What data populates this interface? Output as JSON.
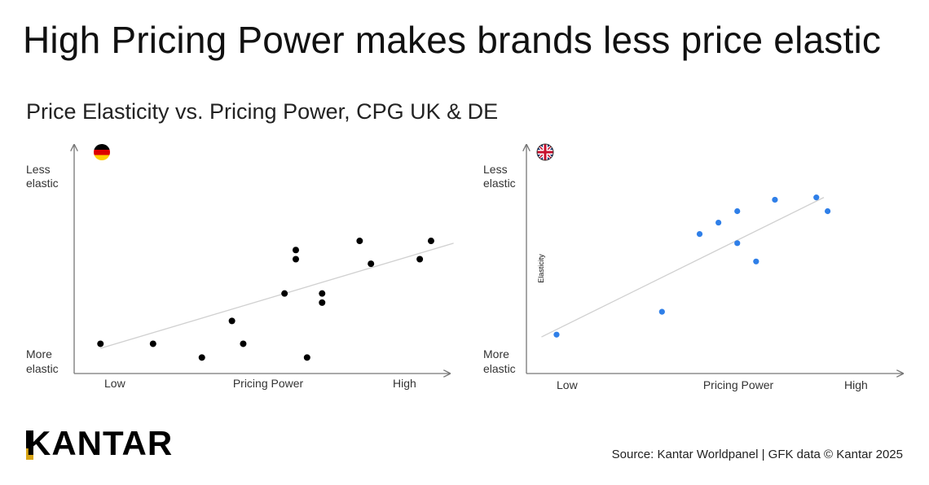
{
  "title": "High Pricing Power makes brands less price elastic",
  "subtitle": "Price Elasticity vs. Pricing Power, CPG UK & DE",
  "source": "Source: Kantar Worldpanel | GFK data © Kantar 2025",
  "logo_text": "KANTAR",
  "colors": {
    "de_points": "#000000",
    "uk_points": "#2f7fe8",
    "trendline": "#d0d0d0",
    "axis": "#777777",
    "logo_accent": "#d9a514"
  },
  "chart_data": [
    {
      "type": "scatter",
      "country": "DE",
      "flag_icon": "germany-flag-icon",
      "xlabel": "Pricing Power",
      "x_low_label": "Low",
      "x_high_label": "High",
      "y_top_label": [
        "Less",
        "elastic"
      ],
      "y_bottom_label": [
        "More",
        "elastic"
      ],
      "ylabel": "",
      "xlim": [
        0,
        100
      ],
      "ylim": [
        0,
        100
      ],
      "points": [
        {
          "x": 7,
          "y": 13
        },
        {
          "x": 21,
          "y": 13
        },
        {
          "x": 34,
          "y": 7
        },
        {
          "x": 42,
          "y": 23
        },
        {
          "x": 45,
          "y": 13
        },
        {
          "x": 56,
          "y": 35
        },
        {
          "x": 59,
          "y": 54
        },
        {
          "x": 59,
          "y": 50
        },
        {
          "x": 62,
          "y": 7
        },
        {
          "x": 66,
          "y": 35
        },
        {
          "x": 66,
          "y": 31
        },
        {
          "x": 76,
          "y": 58
        },
        {
          "x": 79,
          "y": 48
        },
        {
          "x": 92,
          "y": 50
        },
        {
          "x": 95,
          "y": 58
        }
      ],
      "trend": [
        [
          7,
          11
        ],
        [
          101,
          57
        ]
      ]
    },
    {
      "type": "scatter",
      "country": "UK",
      "flag_icon": "uk-flag-icon",
      "xlabel": "Pricing Power",
      "x_low_label": "Low",
      "x_high_label": "High",
      "y_top_label": [
        "Less",
        "elastic"
      ],
      "y_bottom_label": [
        "More",
        "elastic"
      ],
      "ylabel": "Elasticity",
      "xlim": [
        0,
        100
      ],
      "ylim": [
        0,
        100
      ],
      "points": [
        {
          "x": 8,
          "y": 17
        },
        {
          "x": 36,
          "y": 27
        },
        {
          "x": 46,
          "y": 61
        },
        {
          "x": 51,
          "y": 66
        },
        {
          "x": 56,
          "y": 71
        },
        {
          "x": 56,
          "y": 57
        },
        {
          "x": 61,
          "y": 49
        },
        {
          "x": 66,
          "y": 76
        },
        {
          "x": 77,
          "y": 77
        },
        {
          "x": 80,
          "y": 71
        }
      ],
      "trend": [
        [
          4,
          16
        ],
        [
          79,
          77
        ]
      ]
    }
  ]
}
